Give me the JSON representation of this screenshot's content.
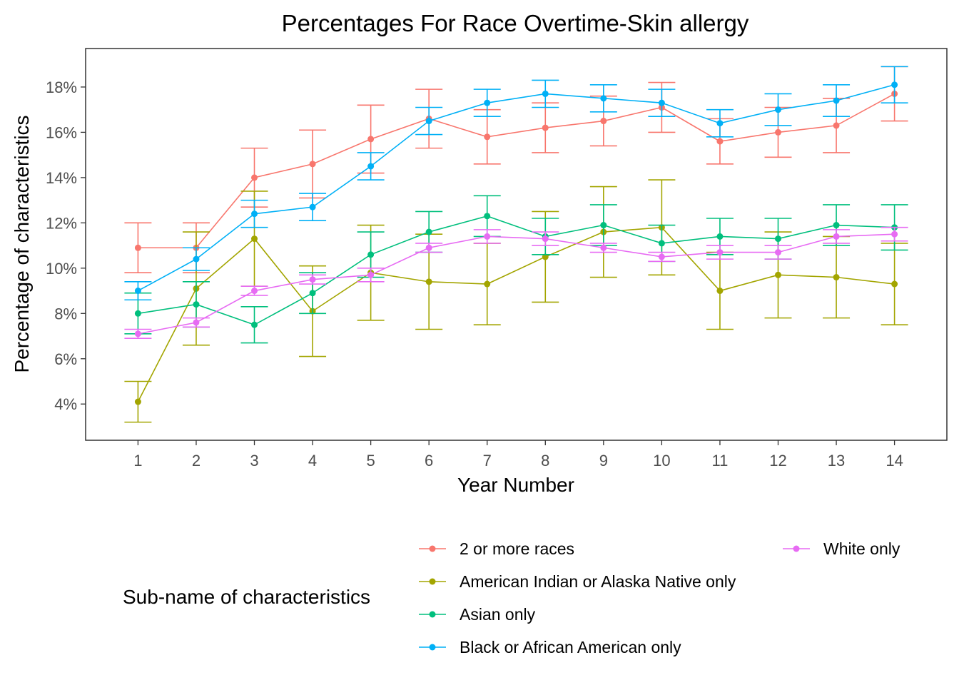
{
  "chart_data": {
    "type": "line",
    "title": "Percentages For Race Overtime-Skin allergy",
    "xlabel": "Year Number",
    "ylabel": "Percentage of characteristics",
    "x": [
      1,
      2,
      3,
      4,
      5,
      6,
      7,
      8,
      9,
      10,
      11,
      12,
      13,
      14
    ],
    "xlim": [
      0.1,
      14.9
    ],
    "ylim": [
      2.4,
      19.7
    ],
    "yticks": [
      4,
      6,
      8,
      10,
      12,
      14,
      16,
      18
    ],
    "ytick_labels": [
      "4%",
      "6%",
      "8%",
      "10%",
      "12%",
      "14%",
      "16%",
      "18%"
    ],
    "grid": false,
    "error_bars": true,
    "legend": {
      "title": "Sub-name of characteristics",
      "placement": "bottom"
    },
    "series": [
      {
        "name": "2 or more races",
        "color": "#F8766D",
        "values": [
          10.9,
          10.9,
          14.0,
          14.6,
          15.7,
          16.6,
          15.8,
          16.2,
          16.5,
          17.1,
          15.6,
          16.0,
          16.3,
          17.7
        ],
        "lower": [
          9.8,
          9.8,
          12.7,
          13.1,
          14.2,
          15.3,
          14.6,
          15.1,
          15.4,
          16.0,
          14.6,
          14.9,
          15.1,
          16.5
        ],
        "upper": [
          12.0,
          12.0,
          15.3,
          16.1,
          17.2,
          17.9,
          17.0,
          17.3,
          17.6,
          18.2,
          16.6,
          17.1,
          17.5,
          18.9
        ]
      },
      {
        "name": "American Indian or Alaska Native only",
        "color": "#A3A500",
        "values": [
          4.1,
          9.1,
          11.3,
          8.1,
          9.8,
          9.4,
          9.3,
          10.5,
          11.6,
          11.8,
          9.0,
          9.7,
          9.6,
          9.3
        ],
        "lower": [
          3.2,
          6.6,
          9.2,
          6.1,
          7.7,
          7.3,
          7.5,
          8.5,
          9.6,
          9.7,
          7.3,
          7.8,
          7.8,
          7.5
        ],
        "upper": [
          5.0,
          11.6,
          13.4,
          10.1,
          11.9,
          11.5,
          11.1,
          12.5,
          13.6,
          13.9,
          10.7,
          11.6,
          11.4,
          11.1
        ]
      },
      {
        "name": "Asian only",
        "color": "#00BF7D",
        "values": [
          8.0,
          8.4,
          7.5,
          8.9,
          10.6,
          11.6,
          12.3,
          11.4,
          11.9,
          11.1,
          11.4,
          11.3,
          11.9,
          11.8
        ],
        "lower": [
          7.1,
          7.4,
          6.7,
          8.0,
          9.6,
          10.7,
          11.4,
          10.6,
          11.0,
          10.3,
          10.6,
          10.4,
          11.0,
          10.8
        ],
        "upper": [
          8.9,
          9.4,
          8.3,
          9.8,
          11.6,
          12.5,
          13.2,
          12.2,
          12.8,
          11.9,
          12.2,
          12.2,
          12.8,
          12.8
        ]
      },
      {
        "name": "Black or African American only",
        "color": "#00B0F6",
        "values": [
          9.0,
          10.4,
          12.4,
          12.7,
          14.5,
          16.5,
          17.3,
          17.7,
          17.5,
          17.3,
          16.4,
          17.0,
          17.4,
          18.1
        ],
        "lower": [
          8.6,
          9.9,
          11.8,
          12.1,
          13.9,
          15.9,
          16.7,
          17.1,
          16.9,
          16.7,
          15.8,
          16.3,
          16.7,
          17.3
        ],
        "upper": [
          9.4,
          10.9,
          13.0,
          13.3,
          15.1,
          17.1,
          17.9,
          18.3,
          18.1,
          17.9,
          17.0,
          17.7,
          18.1,
          18.9
        ]
      },
      {
        "name": "White only",
        "color": "#E76BF3",
        "values": [
          7.1,
          7.6,
          9.0,
          9.5,
          9.7,
          10.9,
          11.4,
          11.3,
          10.9,
          10.5,
          10.7,
          10.7,
          11.4,
          11.5
        ],
        "lower": [
          6.9,
          7.4,
          8.8,
          9.3,
          9.4,
          10.7,
          11.1,
          11.0,
          10.7,
          10.3,
          10.4,
          10.4,
          11.1,
          11.2
        ],
        "upper": [
          7.3,
          7.8,
          9.2,
          9.7,
          10.0,
          11.1,
          11.7,
          11.6,
          11.1,
          10.7,
          11.0,
          11.0,
          11.7,
          11.8
        ]
      }
    ]
  }
}
